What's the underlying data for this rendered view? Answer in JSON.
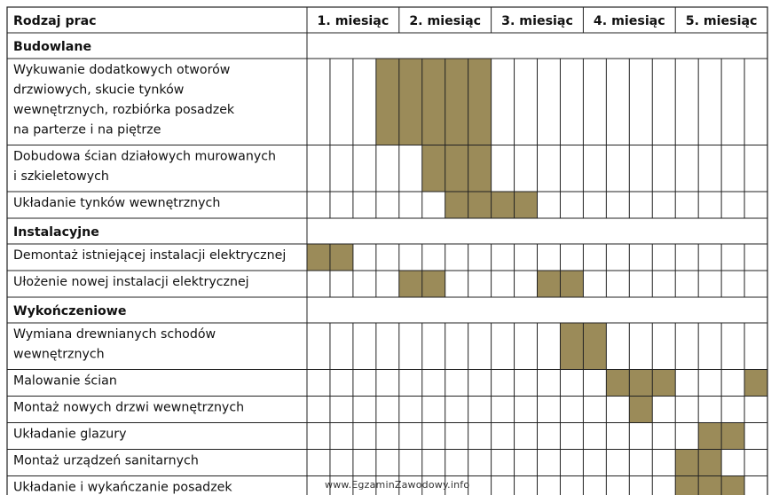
{
  "chart_data": {
    "type": "gantt",
    "header": {
      "task_column": "Rodzaj prac",
      "months": [
        "1. miesiąc",
        "2. miesiąc",
        "3. miesiąc",
        "4. miesiąc",
        "5. miesiąc"
      ]
    },
    "weeks_per_month": 4,
    "bar_color": "#9b8b59",
    "rows": [
      {
        "kind": "section",
        "label": "Budowlane"
      },
      {
        "kind": "task",
        "lines": [
          "Wykuwanie dodatkowych otworów",
          "drzwiowych, skucie tynków",
          "wewnętrznych, rozbiórka posadzek",
          "na parterze i na piętrze"
        ],
        "weeks": [
          4,
          5,
          6,
          7,
          8
        ]
      },
      {
        "kind": "task",
        "lines": [
          "Dobudowa ścian działowych murowanych",
          "i szkieletowych"
        ],
        "weeks": [
          6,
          7,
          8
        ]
      },
      {
        "kind": "task",
        "lines": [
          "Układanie tynków wewnętrznych"
        ],
        "weeks": [
          7,
          8,
          9,
          10
        ]
      },
      {
        "kind": "section",
        "label": "Instalacyjne"
      },
      {
        "kind": "task",
        "lines": [
          "Demontaż istniejącej instalacji elektrycznej"
        ],
        "weeks": [
          1,
          2
        ]
      },
      {
        "kind": "task",
        "lines": [
          "Ułożenie nowej instalacji elektrycznej"
        ],
        "weeks": [
          5,
          6,
          11,
          12
        ]
      },
      {
        "kind": "section",
        "label": "Wykończeniowe"
      },
      {
        "kind": "task",
        "lines": [
          "Wymiana drewnianych schodów",
          "wewnętrznych"
        ],
        "weeks": [
          12,
          13
        ]
      },
      {
        "kind": "task",
        "lines": [
          "Malowanie ścian"
        ],
        "weeks": [
          14,
          15,
          16,
          20
        ]
      },
      {
        "kind": "task",
        "lines": [
          "Montaż nowych drzwi wewnętrznych"
        ],
        "weeks": [
          15
        ]
      },
      {
        "kind": "task",
        "lines": [
          "Układanie glazury"
        ],
        "weeks": [
          18,
          19
        ]
      },
      {
        "kind": "task",
        "lines": [
          "Montaż urządzeń sanitarnych"
        ],
        "weeks": [
          17,
          18
        ]
      },
      {
        "kind": "task",
        "lines": [
          "Układanie i wykańczanie posadzek"
        ],
        "weeks": [
          17,
          18,
          19
        ]
      }
    ]
  },
  "watermark": "www.EgzaminZawodowy.info"
}
